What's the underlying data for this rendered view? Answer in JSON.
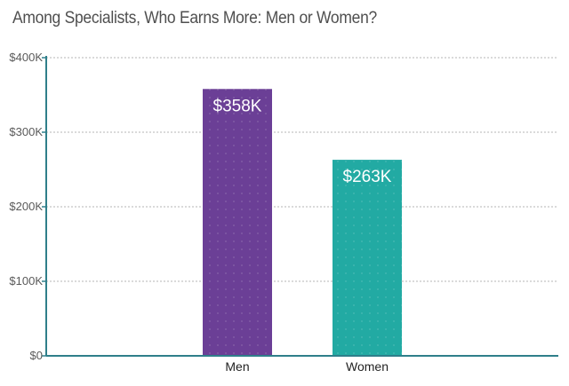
{
  "chart_data": {
    "type": "bar",
    "title": "Among Specialists, Who Earns More: Men or Women?",
    "categories": [
      "Men",
      "Women"
    ],
    "values": [
      358,
      263
    ],
    "data_labels": [
      "$358K",
      "$263K"
    ],
    "bar_colors": [
      "#6b3f96",
      "#22aaa3"
    ],
    "yticks": [
      0,
      100,
      200,
      300,
      400
    ],
    "ytick_labels": [
      "$0",
      "$100K",
      "$200K",
      "$300K",
      "$400K"
    ],
    "ylim": [
      0,
      400
    ],
    "xlabel": "",
    "ylabel": "",
    "grid": true,
    "axis_color": "#2f7f8a",
    "grid_color": "#b5b5b5"
  }
}
